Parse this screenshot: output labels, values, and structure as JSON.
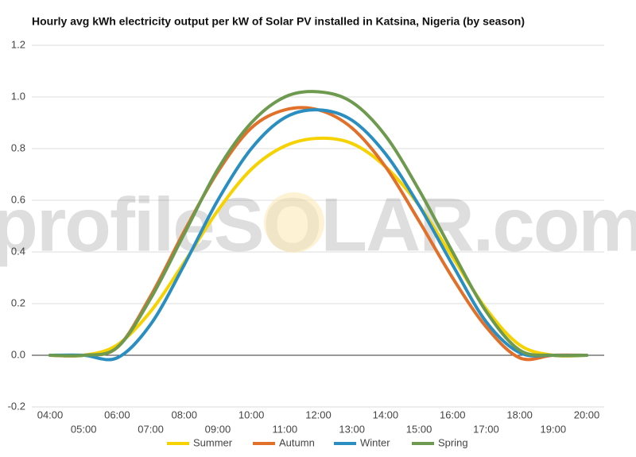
{
  "chart_data": {
    "type": "line",
    "title": "Hourly avg kWh electricity output per kW of Solar PV installed in Katsina, Nigeria (by season)",
    "watermark": "profileSOLAR.com",
    "categories": [
      "04:00",
      "05:00",
      "06:00",
      "07:00",
      "08:00",
      "09:00",
      "10:00",
      "11:00",
      "12:00",
      "13:00",
      "14:00",
      "15:00",
      "16:00",
      "17:00",
      "18:00",
      "19:00",
      "20:00"
    ],
    "series": [
      {
        "name": "Summer",
        "color": "#f5d200",
        "values": [
          0,
          0,
          0.04,
          0.17,
          0.36,
          0.56,
          0.72,
          0.81,
          0.84,
          0.82,
          0.73,
          0.58,
          0.38,
          0.18,
          0.04,
          0,
          0
        ]
      },
      {
        "name": "Autumn",
        "color": "#e0702a",
        "values": [
          0,
          0,
          0.03,
          0.23,
          0.48,
          0.71,
          0.88,
          0.95,
          0.95,
          0.88,
          0.73,
          0.52,
          0.3,
          0.11,
          -0.01,
          0,
          0
        ]
      },
      {
        "name": "Winter",
        "color": "#2a8fc0",
        "values": [
          0,
          0,
          -0.01,
          0.12,
          0.35,
          0.6,
          0.8,
          0.92,
          0.95,
          0.91,
          0.78,
          0.58,
          0.35,
          0.13,
          0.01,
          0,
          0
        ]
      },
      {
        "name": "Spring",
        "color": "#6e9a50",
        "values": [
          0,
          0,
          0.03,
          0.22,
          0.47,
          0.72,
          0.9,
          1.0,
          1.02,
          0.98,
          0.85,
          0.64,
          0.4,
          0.17,
          0.02,
          0,
          0
        ]
      }
    ],
    "ylim": [
      -0.2,
      1.2
    ],
    "yticks": [
      -0.2,
      {
        "value": 0,
        "label": "0.0"
      },
      0.2,
      0.4,
      0.6,
      0.8,
      {
        "value": 1,
        "label": "1.0"
      },
      1.2
    ],
    "grid": true,
    "legend": "bottom"
  }
}
